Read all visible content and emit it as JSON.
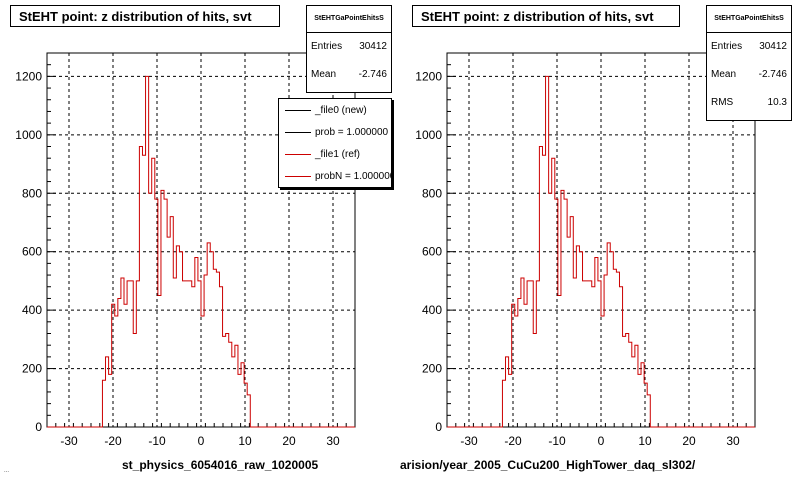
{
  "colors": {
    "histogram": "#cc0000",
    "frame": "#000000",
    "grid": "#000000",
    "background": "#ffffff"
  },
  "left": {
    "title": "StEHT point: z distribution of hits, svt",
    "stats": {
      "name": "StEHTGaPointEhitsS",
      "rows": [
        {
          "label": "Entries",
          "value": "30412"
        },
        {
          "label": "Mean",
          "value": "-2.746"
        }
      ]
    },
    "legend": [
      {
        "label": "_file0 (new)",
        "color": "#000000"
      },
      {
        "label": "prob = 1.000000",
        "color": "#000000"
      },
      {
        "label": "_file1 (ref)",
        "color": "#cc0000"
      },
      {
        "label": "probN = 1.000000",
        "color": "#cc0000"
      }
    ],
    "x_title": "st_physics_6054016_raw_1020005"
  },
  "right": {
    "title": "StEHT point: z distribution of hits, svt",
    "stats": {
      "name": "StEHTGaPointEhitsS",
      "rows": [
        {
          "label": "Entries",
          "value": "30412"
        },
        {
          "label": "Mean",
          "value": "-2.746"
        },
        {
          "label": "RMS",
          "value": "10.3"
        }
      ]
    },
    "x_title": "arision/year_2005_CuCu200_HighTower_daq_sl302/"
  },
  "footer": "...",
  "chart_data": [
    {
      "type": "histogram",
      "title": "StEHT point: z distribution of hits, svt",
      "xlabel": "st_physics_6054016_raw_1020005",
      "ylabel": "",
      "xlim": [
        -35,
        35
      ],
      "ylim": [
        0,
        1280
      ],
      "xticks": [
        -30,
        -20,
        -10,
        0,
        10,
        20,
        30
      ],
      "yticks": [
        0,
        200,
        400,
        600,
        800,
        1000,
        1200
      ],
      "grid": true,
      "legend_placement": "top-right",
      "bin_edges_start": -35,
      "bin_width": 0.7,
      "values": [
        0,
        0,
        0,
        0,
        0,
        0,
        0,
        0,
        0,
        0,
        0,
        0,
        0,
        0,
        0,
        0,
        0,
        0,
        160,
        240,
        180,
        420,
        380,
        440,
        510,
        420,
        500,
        500,
        320,
        500,
        960,
        930,
        1200,
        800,
        920,
        780,
        450,
        810,
        780,
        650,
        720,
        510,
        620,
        600,
        500,
        500,
        500,
        480,
        580,
        500,
        380,
        520,
        630,
        600,
        540,
        530,
        480,
        310,
        320,
        290,
        240,
        280,
        180,
        220,
        150,
        110,
        0,
        0,
        0,
        0,
        0,
        0,
        0,
        0,
        0,
        0,
        0,
        0,
        0,
        0,
        0,
        0,
        0,
        0,
        0,
        0,
        0,
        0,
        0,
        0,
        0,
        0,
        0,
        0,
        0,
        0,
        0,
        0,
        0,
        0
      ]
    },
    {
      "type": "histogram",
      "title": "StEHT point: z distribution of hits, svt",
      "xlabel": "arision/year_2005_CuCu200_HighTower_daq_sl302/",
      "ylabel": "",
      "xlim": [
        -35,
        35
      ],
      "ylim": [
        0,
        1280
      ],
      "xticks": [
        -30,
        -20,
        -10,
        0,
        10,
        20,
        30
      ],
      "yticks": [
        0,
        200,
        400,
        600,
        800,
        1000,
        1200
      ],
      "grid": true,
      "bin_edges_start": -35,
      "bin_width": 0.7,
      "values": [
        0,
        0,
        0,
        0,
        0,
        0,
        0,
        0,
        0,
        0,
        0,
        0,
        0,
        0,
        0,
        0,
        0,
        0,
        160,
        240,
        180,
        420,
        380,
        440,
        510,
        420,
        500,
        500,
        320,
        500,
        960,
        930,
        1200,
        800,
        920,
        780,
        450,
        810,
        780,
        650,
        720,
        510,
        620,
        600,
        500,
        500,
        500,
        480,
        580,
        500,
        380,
        520,
        630,
        600,
        540,
        530,
        480,
        310,
        320,
        290,
        240,
        280,
        180,
        220,
        150,
        110,
        0,
        0,
        0,
        0,
        0,
        0,
        0,
        0,
        0,
        0,
        0,
        0,
        0,
        0,
        0,
        0,
        0,
        0,
        0,
        0,
        0,
        0,
        0,
        0,
        0,
        0,
        0,
        0,
        0,
        0,
        0,
        0,
        0,
        0
      ]
    }
  ]
}
